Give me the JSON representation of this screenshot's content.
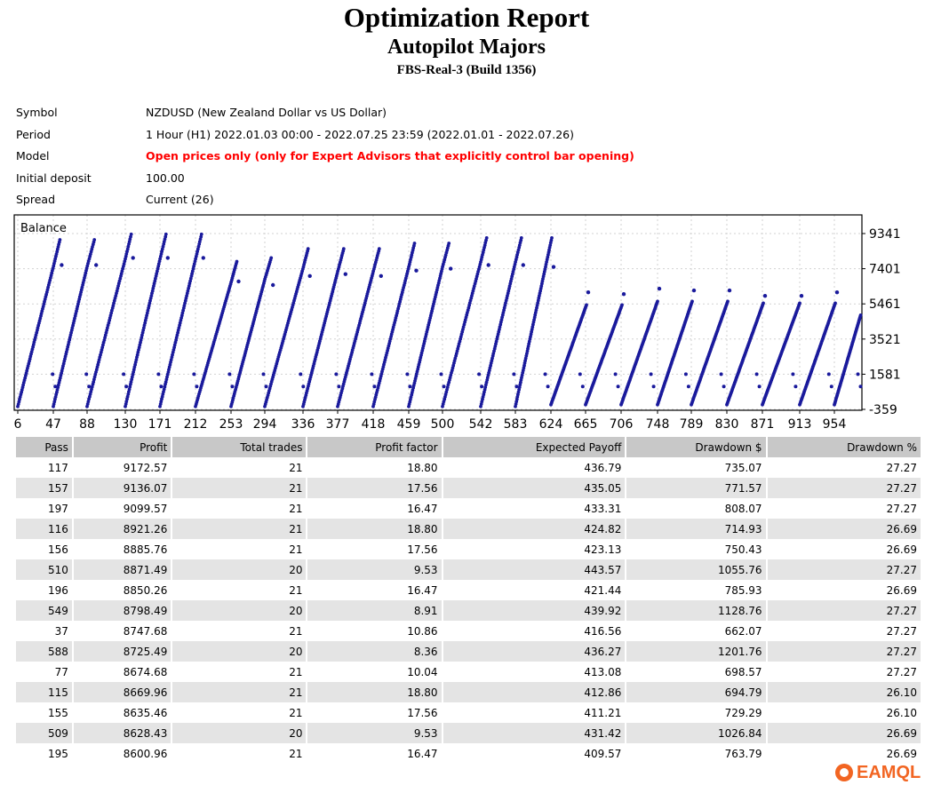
{
  "report": {
    "title": "Optimization Report",
    "subtitle": "Autopilot Majors",
    "server": "FBS-Real-3 (Build 1356)"
  },
  "info": [
    {
      "label": "Symbol",
      "value": "NZDUSD (New Zealand Dollar vs US Dollar)",
      "highlight": false
    },
    {
      "label": "Period",
      "value": "1 Hour (H1) 2022.01.03 00:00 - 2022.07.25 23:59 (2022.01.01 - 2022.07.26)",
      "highlight": false
    },
    {
      "label": "Model",
      "value": "Open prices only (only for Expert Advisors that explicitly control bar opening)",
      "highlight": true
    },
    {
      "label": "Initial deposit",
      "value": "100.00",
      "highlight": false
    },
    {
      "label": "Spread",
      "value": "Current (26)",
      "highlight": false
    }
  ],
  "chart_data": {
    "type": "scatter",
    "title": "Balance",
    "x_ticks": [
      "6",
      "47",
      "88",
      "130",
      "171",
      "212",
      "253",
      "294",
      "336",
      "377",
      "418",
      "459",
      "500",
      "542",
      "583",
      "624",
      "665",
      "706",
      "748",
      "789",
      "830",
      "871",
      "913",
      "954"
    ],
    "y_ticks": [
      "-359",
      "1581",
      "3521",
      "5461",
      "7401",
      "9341"
    ],
    "ylim": [
      -359,
      9341
    ],
    "xlim": [
      6,
      988
    ],
    "grid": true,
    "marker_color": "#1a1a9c",
    "series": [
      {
        "x_start": 6,
        "x_end": 55,
        "y_start": -200,
        "y_end": 9000,
        "outlier_y": 7600
      },
      {
        "x_start": 47,
        "x_end": 96,
        "y_start": -200,
        "y_end": 9000,
        "outlier_y": 7600
      },
      {
        "x_start": 88,
        "x_end": 137,
        "y_start": -200,
        "y_end": 9300,
        "outlier_y": 8000
      },
      {
        "x_start": 130,
        "x_end": 178,
        "y_start": -200,
        "y_end": 9300,
        "outlier_y": 8000
      },
      {
        "x_start": 171,
        "x_end": 219,
        "y_start": -200,
        "y_end": 9300,
        "outlier_y": 8000
      },
      {
        "x_start": 212,
        "x_end": 260,
        "y_start": -200,
        "y_end": 7800,
        "outlier_y": 6700
      },
      {
        "x_start": 253,
        "x_end": 301,
        "y_start": -200,
        "y_end": 8000,
        "outlier_y": 6500
      },
      {
        "x_start": 294,
        "x_end": 342,
        "y_start": -200,
        "y_end": 8500,
        "outlier_y": 7000
      },
      {
        "x_start": 336,
        "x_end": 384,
        "y_start": -200,
        "y_end": 8500,
        "outlier_y": 7100
      },
      {
        "x_start": 377,
        "x_end": 425,
        "y_start": -200,
        "y_end": 8500,
        "outlier_y": 7000
      },
      {
        "x_start": 418,
        "x_end": 466,
        "y_start": -200,
        "y_end": 8800,
        "outlier_y": 7300
      },
      {
        "x_start": 459,
        "x_end": 507,
        "y_start": -200,
        "y_end": 8800,
        "outlier_y": 7400
      },
      {
        "x_start": 500,
        "x_end": 549,
        "y_start": -200,
        "y_end": 9100,
        "outlier_y": 7600
      },
      {
        "x_start": 542,
        "x_end": 590,
        "y_start": -200,
        "y_end": 9100,
        "outlier_y": 7600
      },
      {
        "x_start": 583,
        "x_end": 625,
        "y_start": -200,
        "y_end": 9100,
        "outlier_y": 7500
      },
      {
        "x_start": 624,
        "x_end": 666,
        "y_start": -100,
        "y_end": 5400,
        "outlier_y": 6100
      },
      {
        "x_start": 665,
        "x_end": 707,
        "y_start": -100,
        "y_end": 5400,
        "outlier_y": 6000
      },
      {
        "x_start": 706,
        "x_end": 748,
        "y_start": -100,
        "y_end": 5600,
        "outlier_y": 6300
      },
      {
        "x_start": 748,
        "x_end": 790,
        "y_start": -100,
        "y_end": 5600,
        "outlier_y": 6200
      },
      {
        "x_start": 789,
        "x_end": 831,
        "y_start": -100,
        "y_end": 5600,
        "outlier_y": 6200
      },
      {
        "x_start": 830,
        "x_end": 872,
        "y_start": -100,
        "y_end": 5500,
        "outlier_y": 5900
      },
      {
        "x_start": 871,
        "x_end": 913,
        "y_start": -100,
        "y_end": 5500,
        "outlier_y": 5900
      },
      {
        "x_start": 913,
        "x_end": 955,
        "y_start": -100,
        "y_end": 5500,
        "outlier_y": 6100
      },
      {
        "x_start": 954,
        "x_end": 988,
        "y_start": -100,
        "y_end": 5300,
        "outlier_y": 6100
      }
    ]
  },
  "table": {
    "headers": [
      "Pass",
      "Profit",
      "Total trades",
      "Profit factor",
      "Expected Payoff",
      "Drawdown $",
      "Drawdown %"
    ],
    "rows": [
      [
        "117",
        "9172.57",
        "21",
        "18.80",
        "436.79",
        "735.07",
        "27.27"
      ],
      [
        "157",
        "9136.07",
        "21",
        "17.56",
        "435.05",
        "771.57",
        "27.27"
      ],
      [
        "197",
        "9099.57",
        "21",
        "16.47",
        "433.31",
        "808.07",
        "27.27"
      ],
      [
        "116",
        "8921.26",
        "21",
        "18.80",
        "424.82",
        "714.93",
        "26.69"
      ],
      [
        "156",
        "8885.76",
        "21",
        "17.56",
        "423.13",
        "750.43",
        "26.69"
      ],
      [
        "510",
        "8871.49",
        "20",
        "9.53",
        "443.57",
        "1055.76",
        "27.27"
      ],
      [
        "196",
        "8850.26",
        "21",
        "16.47",
        "421.44",
        "785.93",
        "26.69"
      ],
      [
        "549",
        "8798.49",
        "20",
        "8.91",
        "439.92",
        "1128.76",
        "27.27"
      ],
      [
        "37",
        "8747.68",
        "21",
        "10.86",
        "416.56",
        "662.07",
        "27.27"
      ],
      [
        "588",
        "8725.49",
        "20",
        "8.36",
        "436.27",
        "1201.76",
        "27.27"
      ],
      [
        "77",
        "8674.68",
        "21",
        "10.04",
        "413.08",
        "698.57",
        "27.27"
      ],
      [
        "115",
        "8669.96",
        "21",
        "18.80",
        "412.86",
        "694.79",
        "26.10"
      ],
      [
        "155",
        "8635.46",
        "21",
        "17.56",
        "411.21",
        "729.29",
        "26.10"
      ],
      [
        "509",
        "8628.43",
        "20",
        "9.53",
        "431.42",
        "1026.84",
        "26.69"
      ],
      [
        "195",
        "8600.96",
        "21",
        "16.47",
        "409.57",
        "763.79",
        "26.69"
      ]
    ]
  },
  "watermark": {
    "text": "EAMQL",
    "icon": "eamql-logo-icon",
    "color": "#f26522"
  }
}
